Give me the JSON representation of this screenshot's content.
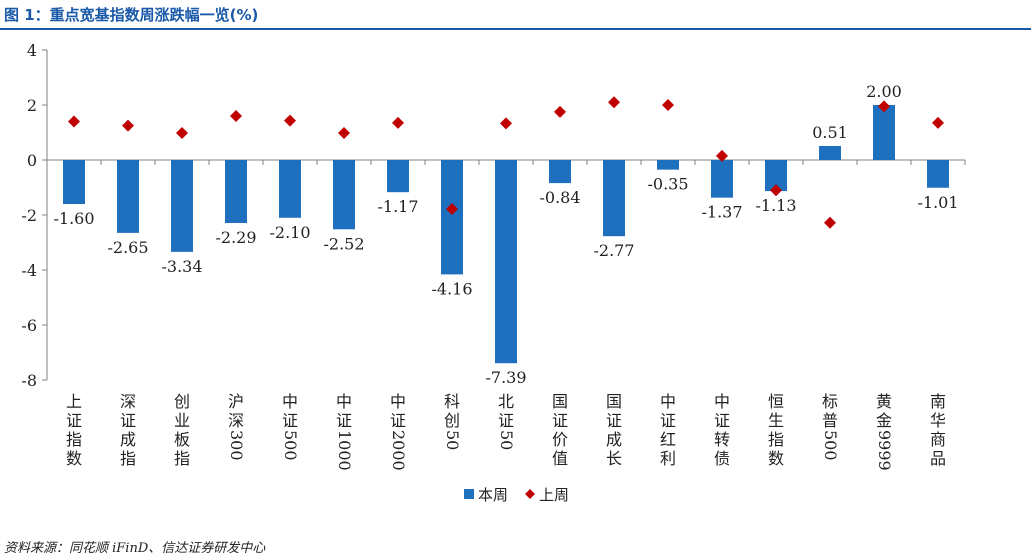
{
  "title": "图 1：重点宽基指数周涨跌幅一览(%)",
  "source": "资料来源：同花顺 iFinD、信达证券研发中心",
  "chart_data": {
    "type": "bar",
    "title": "重点宽基指数周涨跌幅一览(%)",
    "xlabel": "",
    "ylabel": "",
    "ylim": [
      -8,
      4
    ],
    "yticks": [
      4,
      2,
      0,
      -2,
      -4,
      -6,
      -8
    ],
    "categories": [
      "上证指数",
      "深证成指",
      "创业板指",
      "沪深300",
      "中证500",
      "中证1000",
      "中证2000",
      "科创50",
      "北证50",
      "国证价值",
      "国证成长",
      "中证红利",
      "中证转债",
      "恒生指数",
      "标普500",
      "黄金9999",
      "南华商品"
    ],
    "series": [
      {
        "name": "本周",
        "kind": "bar",
        "color": "#1f6fbf",
        "values": [
          -1.6,
          -2.65,
          -3.34,
          -2.29,
          -2.1,
          -2.52,
          -1.17,
          -4.16,
          -7.39,
          -0.84,
          -2.77,
          -0.35,
          -1.37,
          -1.13,
          0.51,
          2.0,
          -1.01
        ],
        "labels": [
          "-1.60",
          "-2.65",
          "-3.34",
          "-2.29",
          "-2.10",
          "-2.52",
          "-1.17",
          "-4.16",
          "-7.39",
          "-0.84",
          "-2.77",
          "-0.35",
          "-1.37",
          "-1.13",
          "0.51",
          "2.00",
          "-1.01"
        ]
      },
      {
        "name": "上周",
        "kind": "marker",
        "color": "#c00000",
        "values": [
          1.4,
          1.25,
          0.98,
          1.6,
          1.43,
          0.98,
          1.35,
          -1.78,
          1.33,
          1.75,
          2.1,
          2.0,
          0.15,
          -1.1,
          -2.28,
          1.95,
          1.35
        ]
      }
    ],
    "legend": "bottom-center"
  }
}
